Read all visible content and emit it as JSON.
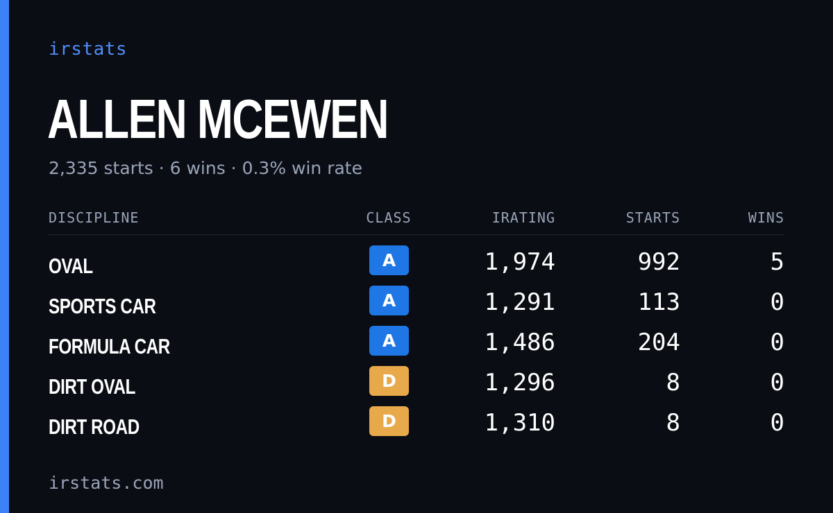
{
  "brand": "irstats",
  "driver": {
    "name": "ALLEN MCEWEN",
    "summary": "2,335 starts · 6 wins · 0.3% win rate"
  },
  "table": {
    "headers": {
      "discipline": "DISCIPLINE",
      "class": "CLASS",
      "irating": "IRATING",
      "starts": "STARTS",
      "wins": "WINS"
    },
    "rows": [
      {
        "discipline": "OVAL",
        "class": "A",
        "class_color": "#1f77e6",
        "irating": "1,974",
        "starts": "992",
        "wins": "5"
      },
      {
        "discipline": "SPORTS CAR",
        "class": "A",
        "class_color": "#1f77e6",
        "irating": "1,291",
        "starts": "113",
        "wins": "0"
      },
      {
        "discipline": "FORMULA CAR",
        "class": "A",
        "class_color": "#1f77e6",
        "irating": "1,486",
        "starts": "204",
        "wins": "0"
      },
      {
        "discipline": "DIRT OVAL",
        "class": "D",
        "class_color": "#e8a94a",
        "irating": "1,296",
        "starts": "8",
        "wins": "0"
      },
      {
        "discipline": "DIRT ROAD",
        "class": "D",
        "class_color": "#e8a94a",
        "irating": "1,310",
        "starts": "8",
        "wins": "0"
      }
    ]
  },
  "footer": "irstats.com",
  "colors": {
    "accent": "#3b82f6",
    "background": "#0a0d14",
    "muted_text": "#9aa4b8",
    "class_a": "#1f77e6",
    "class_d": "#e8a94a"
  }
}
